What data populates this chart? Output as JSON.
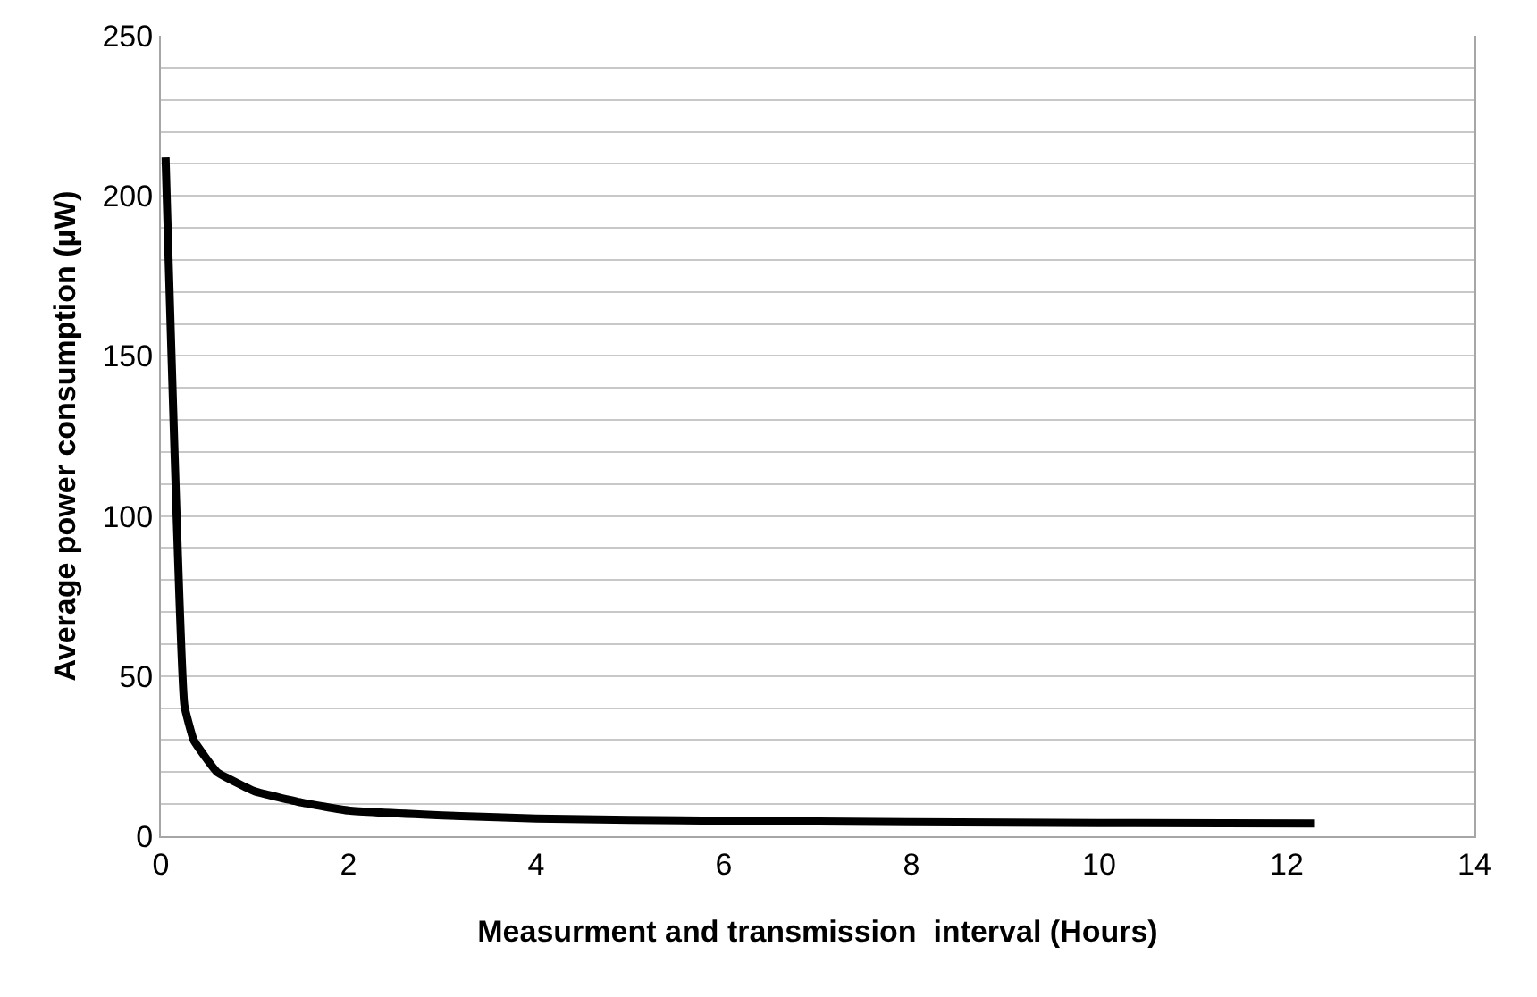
{
  "chart_data": {
    "type": "line",
    "xlabel": "Measurment and transmission  interval (Hours)",
    "ylabel": "Average power consumption (µW)",
    "x": [
      0.05,
      0.25,
      0.35,
      0.6,
      1,
      1.5,
      2,
      3,
      4,
      6,
      8,
      10,
      12.3
    ],
    "series": [
      {
        "color": "#000000",
        "values": [
          212,
          41,
          30,
          20,
          14,
          10.5,
          8,
          6.5,
          5.5,
          4.8,
          4.4,
          4.1,
          4
        ]
      }
    ],
    "xlim": [
      0,
      14
    ],
    "xticks": [
      0,
      2,
      4,
      6,
      8,
      10,
      12,
      14
    ],
    "ylim": [
      0,
      250
    ],
    "yticks": [
      0,
      {
        "value": 10,
        "label": null
      },
      {
        "value": 20,
        "label": null
      },
      {
        "value": 30,
        "label": null
      },
      {
        "value": 40,
        "label": null
      },
      50,
      {
        "value": 60,
        "label": null
      },
      {
        "value": 70,
        "label": null
      },
      {
        "value": 80,
        "label": null
      },
      {
        "value": 90,
        "label": null
      },
      100,
      {
        "value": 110,
        "label": null
      },
      {
        "value": 120,
        "label": null
      },
      {
        "value": 130,
        "label": null
      },
      {
        "value": 140,
        "label": null
      },
      150,
      {
        "value": 160,
        "label": null
      },
      {
        "value": 170,
        "label": null
      },
      {
        "value": 180,
        "label": null
      },
      {
        "value": 190,
        "label": null
      },
      200,
      {
        "value": 210,
        "label": null
      },
      {
        "value": 220,
        "label": null
      },
      {
        "value": 230,
        "label": null
      },
      {
        "value": 240,
        "label": null
      },
      250
    ],
    "grid": "y",
    "marker": "none",
    "line_style": "solid"
  }
}
